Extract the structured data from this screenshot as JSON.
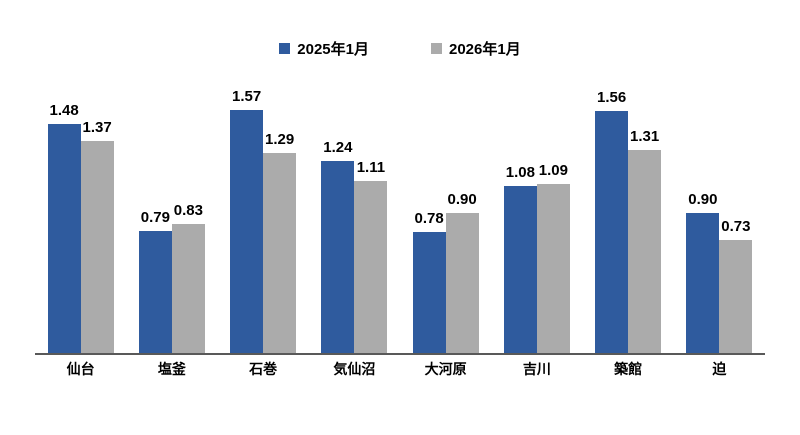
{
  "chart_data": {
    "type": "bar",
    "title": "",
    "xlabel": "",
    "ylabel": "",
    "categories": [
      "仙台",
      "塩釜",
      "石巻",
      "気仙沼",
      "大河原",
      "吉川",
      "築館",
      "迫"
    ],
    "series": [
      {
        "name": "2025年1月",
        "color": "#2F5B9E",
        "values": [
          1.48,
          0.79,
          1.57,
          1.24,
          0.78,
          1.08,
          1.56,
          0.9
        ]
      },
      {
        "name": "2026年1月",
        "color": "#ABABAB",
        "values": [
          1.37,
          0.83,
          1.29,
          1.11,
          0.9,
          1.09,
          1.31,
          0.73
        ]
      }
    ],
    "ylim": [
      0,
      1.8
    ],
    "grid": false,
    "legend_position": "top",
    "value_labels": true,
    "value_label_format": "0.00",
    "axis_line_color": "#595959",
    "text_color": "#000000"
  }
}
